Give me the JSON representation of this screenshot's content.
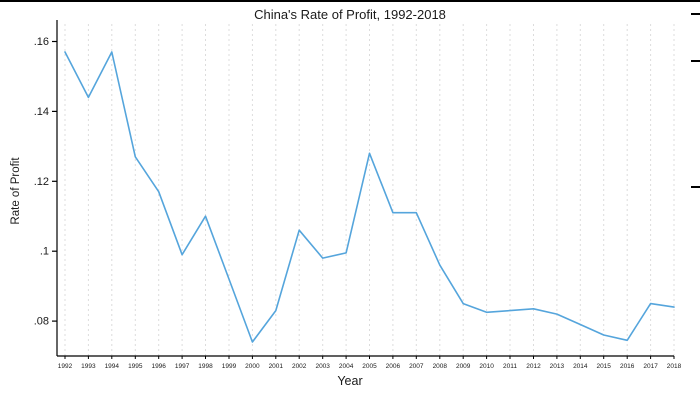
{
  "chart_data": {
    "type": "line",
    "title": "China's Rate of Profit, 1992-2018",
    "xlabel": "Year",
    "ylabel": "Rate of Profit",
    "x": [
      1992,
      1993,
      1994,
      1995,
      1996,
      1997,
      1998,
      1999,
      2000,
      2001,
      2002,
      2003,
      2004,
      2005,
      2006,
      2007,
      2008,
      2009,
      2010,
      2011,
      2012,
      2013,
      2014,
      2015,
      2016,
      2017,
      2018
    ],
    "values": [
      0.157,
      0.144,
      0.157,
      0.127,
      0.117,
      0.099,
      0.11,
      0.092,
      0.074,
      0.083,
      0.106,
      0.098,
      0.0995,
      0.128,
      0.111,
      0.111,
      0.096,
      0.085,
      0.0825,
      0.083,
      0.0835,
      0.082,
      0.079,
      0.076,
      0.0745,
      0.085,
      0.084
    ],
    "yticks": [
      0.08,
      0.1,
      0.12,
      0.14,
      0.16
    ],
    "ytick_labels": [
      ".08",
      ".1",
      ".12",
      ".14",
      ".16"
    ],
    "ylim": [
      0.07,
      0.165
    ],
    "line_color": "#55a5dc",
    "grid": "vertical-dashed",
    "grid_color": "#dcdcdc",
    "axis_color": "#000000",
    "legend": "none"
  }
}
